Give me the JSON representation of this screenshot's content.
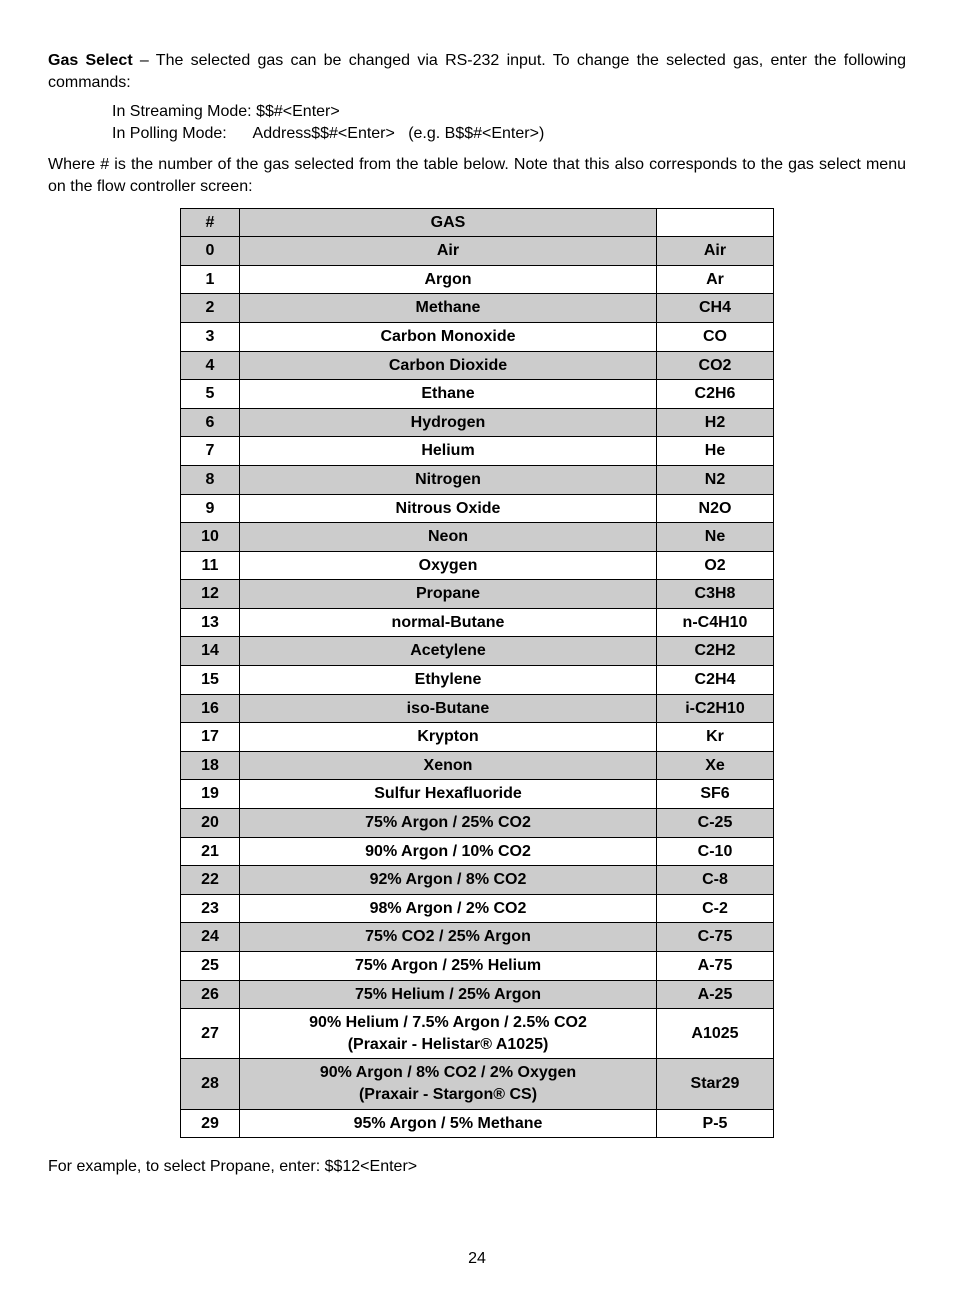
{
  "intro": {
    "heading": "Gas Select",
    "text_after": " – The selected gas can be changed via RS-232 input. To change the selected gas, enter the following commands:"
  },
  "commands": {
    "line1_label": "In Streaming Mode: ",
    "line1_cmd": "$$#<Enter>",
    "line2_label": "In Polling Mode:      ",
    "line2_cmd": "Address$$#<Enter>   (e.g. B$$#<Enter>)"
  },
  "para2": "Where # is the number of the gas selected from the table below. Note that this also corresponds to the gas select menu on the flow controller screen:",
  "table": {
    "head_num": "#",
    "head_gas": "GAS",
    "rows": [
      {
        "n": "0",
        "gas": "Air",
        "sym": "Air",
        "shade": true
      },
      {
        "n": "1",
        "gas": "Argon",
        "sym": "Ar",
        "shade": false
      },
      {
        "n": "2",
        "gas": "Methane",
        "sym": "CH4",
        "shade": true
      },
      {
        "n": "3",
        "gas": "Carbon Monoxide",
        "sym": "CO",
        "shade": false
      },
      {
        "n": "4",
        "gas": "Carbon Dioxide",
        "sym": "CO2",
        "shade": true
      },
      {
        "n": "5",
        "gas": "Ethane",
        "sym": "C2H6",
        "shade": false
      },
      {
        "n": "6",
        "gas": "Hydrogen",
        "sym": "H2",
        "shade": true
      },
      {
        "n": "7",
        "gas": "Helium",
        "sym": "He",
        "shade": false
      },
      {
        "n": "8",
        "gas": "Nitrogen",
        "sym": "N2",
        "shade": true
      },
      {
        "n": "9",
        "gas": "Nitrous Oxide",
        "sym": "N2O",
        "shade": false
      },
      {
        "n": "10",
        "gas": "Neon",
        "sym": "Ne",
        "shade": true
      },
      {
        "n": "11",
        "gas": "Oxygen",
        "sym": "O2",
        "shade": false
      },
      {
        "n": "12",
        "gas": "Propane",
        "sym": "C3H8",
        "shade": true
      },
      {
        "n": "13",
        "gas": "normal-Butane",
        "sym": "n-C4H10",
        "shade": false
      },
      {
        "n": "14",
        "gas": "Acetylene",
        "sym": "C2H2",
        "shade": true
      },
      {
        "n": "15",
        "gas": "Ethylene",
        "sym": "C2H4",
        "shade": false
      },
      {
        "n": "16",
        "gas": "iso-Butane",
        "sym": "i-C2H10",
        "shade": true
      },
      {
        "n": "17",
        "gas": "Krypton",
        "sym": "Kr",
        "shade": false
      },
      {
        "n": "18",
        "gas": "Xenon",
        "sym": "Xe",
        "shade": true
      },
      {
        "n": "19",
        "gas": "Sulfur Hexafluoride",
        "sym": "SF6",
        "shade": false
      },
      {
        "n": "20",
        "gas": "75% Argon / 25% CO2",
        "sym": "C-25",
        "shade": true
      },
      {
        "n": "21",
        "gas": "90% Argon / 10% CO2",
        "sym": "C-10",
        "shade": false
      },
      {
        "n": "22",
        "gas": "92% Argon / 8% CO2",
        "sym": "C-8",
        "shade": true
      },
      {
        "n": "23",
        "gas": "98% Argon / 2% CO2",
        "sym": "C-2",
        "shade": false
      },
      {
        "n": "24",
        "gas": "75% CO2 / 25% Argon",
        "sym": "C-75",
        "shade": true
      },
      {
        "n": "25",
        "gas": "75% Argon / 25% Helium",
        "sym": "A-75",
        "shade": false
      },
      {
        "n": "26",
        "gas": "75% Helium / 25% Argon",
        "sym": "A-25",
        "shade": true
      },
      {
        "n": "27",
        "gas": "90% Helium / 7.5% Argon / 2.5% CO2",
        "sub": "(Praxair - Helistar® A1025)",
        "sym": "A1025",
        "shade": false
      },
      {
        "n": "28",
        "gas": "90% Argon / 8% CO2 / 2% Oxygen",
        "sub": "(Praxair - Stargon® CS)",
        "sym": "Star29",
        "shade": true
      },
      {
        "n": "29",
        "gas": "95% Argon / 5% Methane",
        "sym": "P-5",
        "shade": false
      }
    ]
  },
  "example": "For example, to select Propane, enter:  $$12<Enter>",
  "page_number": "24"
}
